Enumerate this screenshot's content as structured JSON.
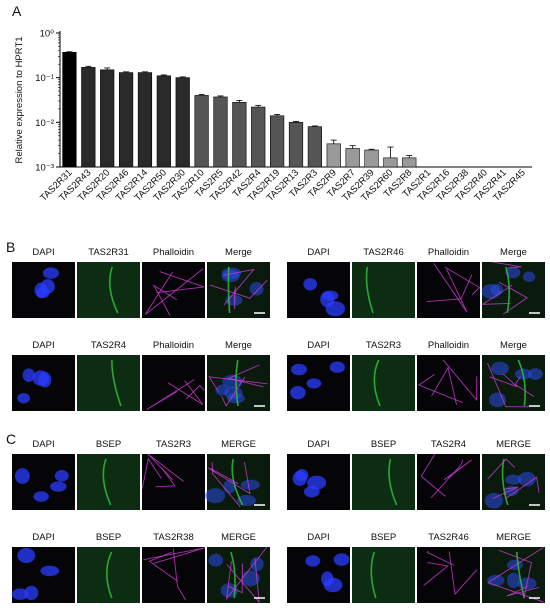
{
  "chart_data": {
    "type": "bar",
    "panel_label": "A",
    "y_label": "Relative expression to HPRT1",
    "categories": [
      "TAS2R31",
      "TAS2R43",
      "TAS2R20",
      "TAS2R46",
      "TAS2R14",
      "TAS2R50",
      "TAS2R30",
      "TAS2R10",
      "TAS2R5",
      "TAS2R42",
      "TAS2R4",
      "TAS2R19",
      "TAS2R13",
      "TAS2R3",
      "TAS2R9",
      "TAS2R7",
      "TAS2R39",
      "TAS2R60",
      "TAS2R8",
      "TAS2R1",
      "TAS2R16",
      "TAS2R38",
      "TAS2R40",
      "TAS2R41",
      "TAS2R45"
    ],
    "values": [
      0.37,
      0.17,
      0.15,
      0.13,
      0.13,
      0.11,
      0.1,
      0.04,
      0.037,
      0.028,
      0.022,
      0.014,
      0.01,
      0.008,
      0.0033,
      0.0026,
      0.0024,
      0.0016,
      0.0016,
      null,
      null,
      null,
      null,
      null,
      null
    ],
    "errors": [
      0.01,
      0.01,
      0.015,
      0.005,
      0.005,
      0.005,
      0.004,
      0.002,
      0.002,
      0.003,
      0.002,
      0.001,
      0.0005,
      0.0003,
      0.0007,
      0.0004,
      0.0001,
      0.0012,
      0.0002,
      null,
      null,
      null,
      null,
      null,
      null
    ],
    "colors": [
      "#000000",
      "#2a2a2a",
      "#2a2a2a",
      "#2a2a2a",
      "#2a2a2a",
      "#2a2a2a",
      "#2a2a2a",
      "#555555",
      "#555555",
      "#555555",
      "#555555",
      "#555555",
      "#555555",
      "#555555",
      "#9a9a9a",
      "#9a9a9a",
      "#9a9a9a",
      "#9a9a9a",
      "#9a9a9a",
      "#9a9a9a",
      "#9a9a9a",
      "#9a9a9a",
      "#9a9a9a",
      "#9a9a9a",
      "#9a9a9a"
    ],
    "log_scale": true,
    "ylim": [
      0.001,
      1
    ],
    "yticks": [
      {
        "value": 1,
        "label": "10⁰"
      },
      {
        "value": 0.1,
        "label": "10⁻¹"
      },
      {
        "value": 0.01,
        "label": "10⁻²"
      },
      {
        "value": 0.001,
        "label": "10⁻³"
      }
    ]
  },
  "panels": [
    {
      "label": "B",
      "groups": [
        [
          "DAPI",
          "TAS2R31",
          "Phalloidin",
          "Merge"
        ],
        [
          "DAPI",
          "TAS2R46",
          "Phalloidin",
          "Merge"
        ],
        [
          "DAPI",
          "TAS2R4",
          "Phalloidin",
          "Merge"
        ],
        [
          "DAPI",
          "TAS2R3",
          "Phalloidin",
          "Merge"
        ]
      ]
    },
    {
      "label": "C",
      "groups": [
        [
          "DAPI",
          "BSEP",
          "TAS2R3",
          "MERGE"
        ],
        [
          "DAPI",
          "BSEP",
          "TAS2R4",
          "MERGE"
        ],
        [
          "DAPI",
          "BSEP",
          "TAS2R38",
          "MERGE"
        ],
        [
          "DAPI",
          "BSEP",
          "TAS2R46",
          "MERGE"
        ]
      ]
    }
  ]
}
